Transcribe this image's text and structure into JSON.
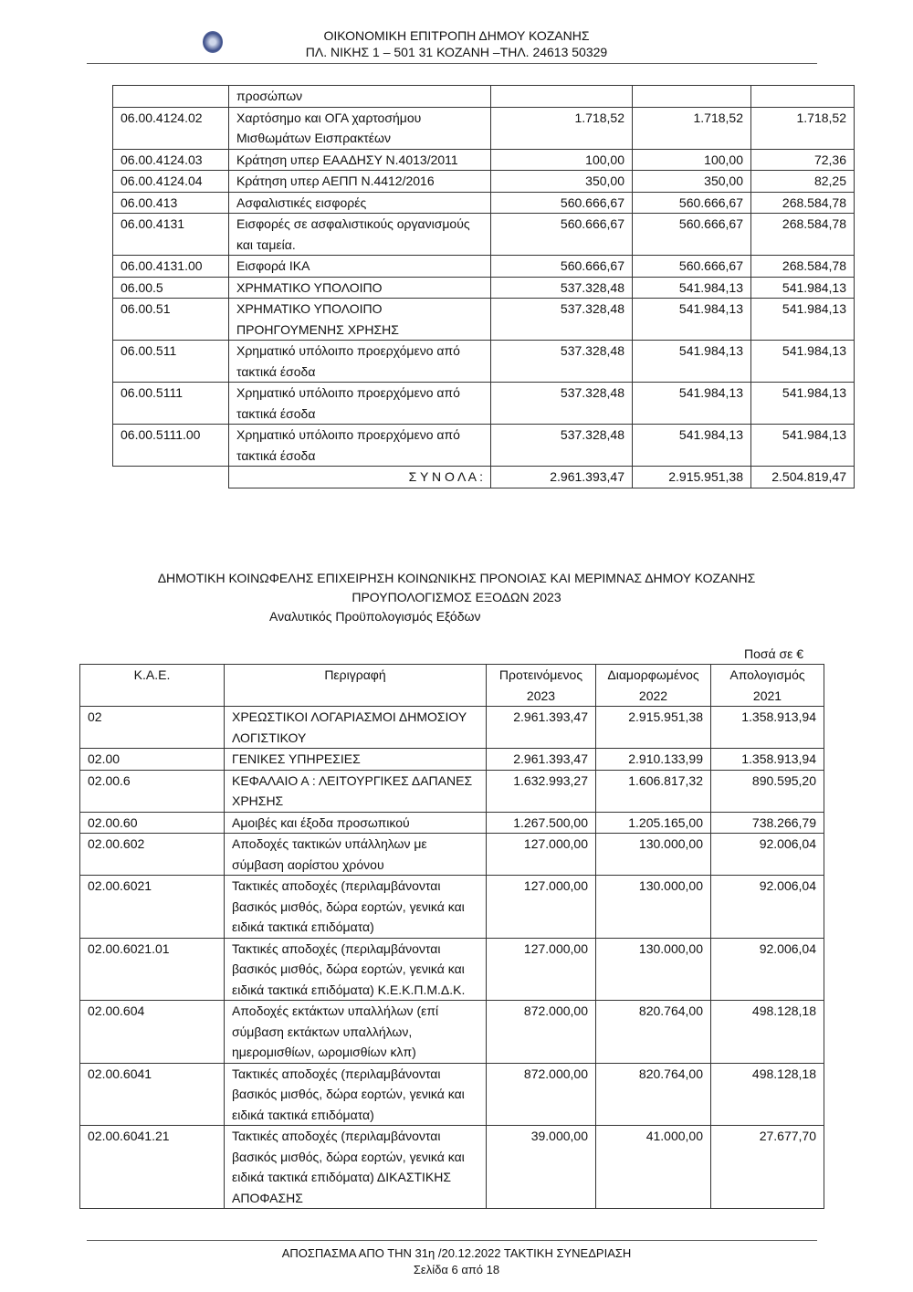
{
  "header": {
    "line1": "ΟΙΚΟΝΟΜΙΚΗ ΕΠΙΤΡΟΠΗ ΔΗΜΟΥ ΚΟΖΑΝΗΣ",
    "line2": "ΠΛ. ΝΙΚΗΣ 1 – 501 31 ΚΟΖΑΝΗ –ΤΗΛ. 24613 50329"
  },
  "table1": {
    "rows": [
      [
        "",
        "προσώπων",
        "",
        "",
        ""
      ],
      [
        "06.00.4124.02",
        "Χαρτόσημο και ΟΓΑ χαρτοσήμου Μισθωμάτων Εισπρακτέων",
        "1.718,52",
        "1.718,52",
        "1.718,52"
      ],
      [
        "06.00.4124.03",
        "Κράτηση υπερ ΕΑΑΔΗΣΥ Ν.4013/2011",
        "100,00",
        "100,00",
        "72,36"
      ],
      [
        "06.00.4124.04",
        "Κράτηση υπερ ΑΕΠΠ Ν.4412/2016",
        "350,00",
        "350,00",
        "82,25"
      ],
      [
        "06.00.413",
        "Ασφαλιστικές εισφορές",
        "560.666,67",
        "560.666,67",
        "268.584,78"
      ],
      [
        "06.00.4131",
        "Εισφορές σε ασφαλιστικούς οργανισμούς και ταμεία.",
        "560.666,67",
        "560.666,67",
        "268.584,78"
      ],
      [
        "06.00.4131.00",
        "Εισφορά ΙΚΑ",
        "560.666,67",
        "560.666,67",
        "268.584,78"
      ],
      [
        "06.00.5",
        "ΧΡΗΜΑΤΙΚΟ ΥΠΟΛΟΙΠΟ",
        "537.328,48",
        "541.984,13",
        "541.984,13"
      ],
      [
        "06.00.51",
        "ΧΡΗΜΑΤΙΚΟ ΥΠΟΛΟΙΠΟ ΠΡΟΗΓΟΥΜΕΝΗΣ ΧΡΗΣΗΣ",
        "537.328,48",
        "541.984,13",
        "541.984,13"
      ],
      [
        "06.00.511",
        "Χρηματικό υπόλοιπο προερχόμενο από τακτικά έσοδα",
        "537.328,48",
        "541.984,13",
        "541.984,13"
      ],
      [
        "06.00.5111",
        "Χρηματικό υπόλοιπο προερχόμενο από τακτικά έσοδα",
        "537.328,48",
        "541.984,13",
        "541.984,13"
      ],
      [
        "06.00.5111.00",
        "Χρηματικό υπόλοιπο προερχόμενο από τακτικά έσοδα",
        "537.328,48",
        "541.984,13",
        "541.984,13"
      ]
    ],
    "totals": {
      "label": "Σ Υ Ν Ο Λ Α :",
      "values": [
        "2.961.393,47",
        "2.915.951,38",
        "2.504.819,47"
      ]
    }
  },
  "section": {
    "title1": "ΔΗΜΟΤΙΚΗ ΚΟΙΝΩΦΕΛΗΣ ΕΠΙΧΕΙΡΗΣΗ ΚΟΙΝΩΝΙΚΗΣ ΠΡΟΝΟΙΑΣ ΚΑΙ ΜΕΡΙΜΝΑΣ ΔΗΜΟΥ ΚΟΖΑΝΗΣ",
    "title2": "ΠΡΟΥΠΟΛΟΓΙΣΜΟΣ ΕΞΟΔΩΝ 2023",
    "subtitle": "Αναλυτικός Προϋπολογισμός Εξόδων",
    "currency_note": "Ποσά σε €"
  },
  "table2": {
    "headers": [
      "Κ.Α.Ε.",
      "Περιγραφή",
      "Προτεινόμενος 2023",
      "Διαμορφωμένος 2022",
      "Απολογισμός 2021"
    ],
    "rows": [
      [
        "02",
        "ΧΡΕΩΣΤΙΚΟΙ ΛΟΓΑΡΙΑΣΜΟΙ ΔΗΜΟΣΙΟΥ ΛΟΓΙΣΤΙΚΟΥ",
        "2.961.393,47",
        "2.915.951,38",
        "1.358.913,94"
      ],
      [
        "02.00",
        "ΓΕΝΙΚΕΣ ΥΠΗΡΕΣΙΕΣ",
        "2.961.393,47",
        "2.910.133,99",
        "1.358.913,94"
      ],
      [
        "02.00.6",
        "ΚΕΦΑΛΑΙΟ Α : ΛΕΙΤΟΥΡΓΙΚΕΣ ΔΑΠΑΝΕΣ ΧΡΗΣΗΣ",
        "1.632.993,27",
        "1.606.817,32",
        "890.595,20"
      ],
      [
        "02.00.60",
        "Αμοιβές και έξοδα προσωπικού",
        "1.267.500,00",
        "1.205.165,00",
        "738.266,79"
      ],
      [
        "02.00.602",
        "Αποδοχές τακτικών υπάλληλων με σύμβαση αορίστου χρόνου",
        "127.000,00",
        "130.000,00",
        "92.006,04"
      ],
      [
        "02.00.6021",
        "Τακτικές αποδοχές (περιλαμβάνονται βασικός μισθός, δώρα εορτών, γενικά και ειδικά τακτικά επιδόματα)",
        "127.000,00",
        "130.000,00",
        "92.006,04"
      ],
      [
        "02.00.6021.01",
        "Τακτικές αποδοχές (περιλαμβάνονται βασικός μισθός, δώρα εορτών, γενικά και ειδικά τακτικά επιδόματα) Κ.Ε.Κ.Π.Μ.Δ.Κ.",
        "127.000,00",
        "130.000,00",
        "92.006,04"
      ],
      [
        "02.00.604",
        "Αποδοχές εκτάκτων υπαλλήλων (επί σύμβαση εκτάκτων υπαλλήλων, ημερομισθίων, ωρομισθίων κλπ)",
        "872.000,00",
        "820.764,00",
        "498.128,18"
      ],
      [
        "02.00.6041",
        "Τακτικές αποδοχές (περιλαμβάνονται βασικός μισθός, δώρα εορτών, γενικά και ειδικά τακτικά επιδόματα)",
        "872.000,00",
        "820.764,00",
        "498.128,18"
      ],
      [
        "02.00.6041.21",
        "Τακτικές αποδοχές (περιλαμβάνονται βασικός μισθός, δώρα εορτών, γενικά και ειδικά τακτικά επιδόματα) ΔΙΚΑΣΤΙΚΗΣ ΑΠΟΦΑΣΗΣ",
        "39.000,00",
        "41.000,00",
        "27.677,70"
      ]
    ]
  },
  "footer": {
    "line1": "ΑΠΟΣΠΑΣΜΑ ΑΠΟ ΤΗΝ 31η /20.12.2022 ΤΑΚΤΙΚΗ ΣΥΝΕΔΡΙΑΣΗ",
    "line2": "Σελίδα 6 από 18"
  }
}
